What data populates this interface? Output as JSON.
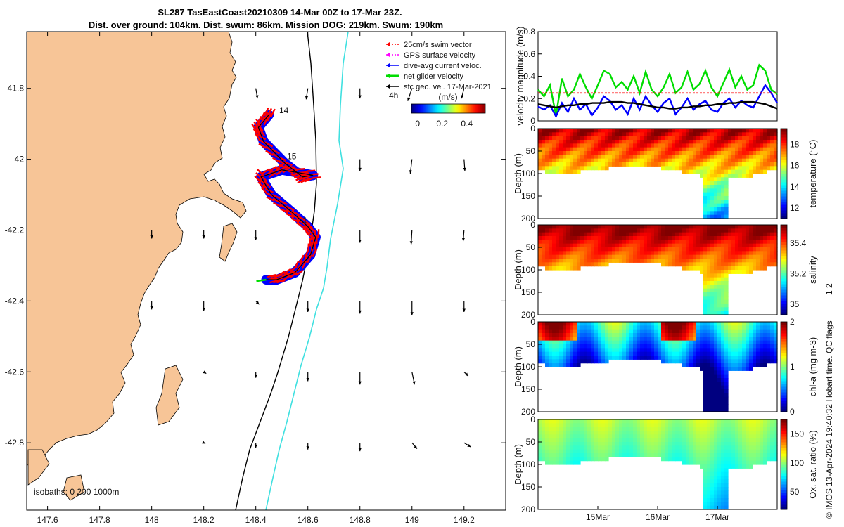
{
  "title": {
    "line1": "SL287 TasEastCoast20210309 14-Mar 00Z to 17-Mar 23Z.",
    "line2": "Dist. over ground: 104km. Dist. swum: 86km. Mission DOG: 219km. Swum: 190km"
  },
  "colors": {
    "land": "#F7C597",
    "shelf_line": "#000000",
    "slope_line": "#40E0E0",
    "swim": "#FF0000",
    "gps": "#FF00FF",
    "dive_avg": "#0000FF",
    "net": "#00DD00",
    "sfc_geo": "#000000"
  },
  "chart_data": [
    {
      "type": "map",
      "name": "track map",
      "xlim": [
        147.52,
        149.36
      ],
      "ylim": [
        -42.99,
        -41.64
      ],
      "x_ticks": [
        147.6,
        147.8,
        148,
        148.2,
        148.4,
        148.6,
        148.8,
        149,
        149.2
      ],
      "x_tick_labels": [
        "147.6",
        "147.8",
        "148",
        "148.2",
        "148.4",
        "148.6",
        "148.8",
        "149",
        "149.2"
      ],
      "y_ticks": [
        -41.8,
        -42,
        -42.2,
        -42.4,
        -42.6,
        -42.8
      ],
      "y_tick_labels": [
        "-41.8",
        "-42",
        "-42.2",
        "-42.4",
        "-42.6",
        "-42.8"
      ],
      "track_labels": [
        {
          "text": "14",
          "lon": 148.49,
          "lat": -41.87
        },
        {
          "text": "15",
          "lon": 148.52,
          "lat": -42.0
        },
        {
          "text": "1",
          "lon": 148.58,
          "lat": -42.18
        }
      ],
      "glider_track": [
        {
          "lon": 148.45,
          "lat": -41.875
        },
        {
          "lon": 148.41,
          "lat": -41.91
        },
        {
          "lon": 148.43,
          "lat": -41.95
        },
        {
          "lon": 148.51,
          "lat": -42.01
        },
        {
          "lon": 148.58,
          "lat": -42.05
        },
        {
          "lon": 148.62,
          "lat": -42.045
        },
        {
          "lon": 148.5,
          "lat": -42.03
        },
        {
          "lon": 148.42,
          "lat": -42.05
        },
        {
          "lon": 148.46,
          "lat": -42.1
        },
        {
          "lon": 148.54,
          "lat": -42.15
        },
        {
          "lon": 148.6,
          "lat": -42.19
        },
        {
          "lon": 148.63,
          "lat": -42.22
        },
        {
          "lon": 148.61,
          "lat": -42.27
        },
        {
          "lon": 148.55,
          "lat": -42.32
        },
        {
          "lon": 148.48,
          "lat": -42.34
        },
        {
          "lon": 148.44,
          "lat": -42.34
        }
      ],
      "current_vectors": [
        {
          "lon": 148.4,
          "lat": -41.8,
          "u": 0.02,
          "v": -0.12
        },
        {
          "lon": 148.6,
          "lat": -41.8,
          "u": -0.02,
          "v": -0.13
        },
        {
          "lon": 148.8,
          "lat": -41.8,
          "u": 0.0,
          "v": -0.12
        },
        {
          "lon": 149.0,
          "lat": -41.8,
          "u": -0.05,
          "v": -0.15
        },
        {
          "lon": 149.2,
          "lat": -41.8,
          "u": -0.03,
          "v": -0.12
        },
        {
          "lon": 148.8,
          "lat": -42.0,
          "u": 0.0,
          "v": -0.14
        },
        {
          "lon": 149.0,
          "lat": -42.0,
          "u": -0.02,
          "v": -0.17
        },
        {
          "lon": 149.2,
          "lat": -42.0,
          "u": 0.01,
          "v": -0.14
        },
        {
          "lon": 148.0,
          "lat": -42.2,
          "u": 0.0,
          "v": -0.1
        },
        {
          "lon": 148.2,
          "lat": -42.2,
          "u": 0.0,
          "v": -0.1
        },
        {
          "lon": 148.4,
          "lat": -42.2,
          "u": 0.0,
          "v": -0.12
        },
        {
          "lon": 148.8,
          "lat": -42.2,
          "u": 0.0,
          "v": -0.15
        },
        {
          "lon": 149.0,
          "lat": -42.2,
          "u": -0.01,
          "v": -0.17
        },
        {
          "lon": 149.2,
          "lat": -42.2,
          "u": -0.01,
          "v": -0.13
        },
        {
          "lon": 148.0,
          "lat": -42.4,
          "u": 0.0,
          "v": -0.1
        },
        {
          "lon": 148.2,
          "lat": -42.4,
          "u": 0.0,
          "v": -0.12
        },
        {
          "lon": 148.4,
          "lat": -42.4,
          "u": 0.04,
          "v": -0.04
        },
        {
          "lon": 148.6,
          "lat": -42.4,
          "u": 0.0,
          "v": -0.13
        },
        {
          "lon": 148.8,
          "lat": -42.4,
          "u": 0.0,
          "v": -0.15
        },
        {
          "lon": 149.0,
          "lat": -42.4,
          "u": 0.0,
          "v": -0.17
        },
        {
          "lon": 149.2,
          "lat": -42.4,
          "u": 0.0,
          "v": -0.13
        },
        {
          "lon": 148.2,
          "lat": -42.6,
          "u": 0.03,
          "v": -0.02
        },
        {
          "lon": 148.4,
          "lat": -42.6,
          "u": 0.0,
          "v": -0.07
        },
        {
          "lon": 148.6,
          "lat": -42.6,
          "u": 0.0,
          "v": -0.11
        },
        {
          "lon": 148.8,
          "lat": -42.6,
          "u": 0.0,
          "v": -0.15
        },
        {
          "lon": 149.0,
          "lat": -42.6,
          "u": 0.03,
          "v": -0.15
        },
        {
          "lon": 149.2,
          "lat": -42.6,
          "u": 0.05,
          "v": -0.05
        },
        {
          "lon": 148.2,
          "lat": -42.8,
          "u": 0.02,
          "v": -0.01
        },
        {
          "lon": 148.4,
          "lat": -42.8,
          "u": 0.0,
          "v": -0.06
        },
        {
          "lon": 148.6,
          "lat": -42.8,
          "u": 0.0,
          "v": -0.08
        },
        {
          "lon": 148.8,
          "lat": -42.8,
          "u": 0.0,
          "v": -0.1
        },
        {
          "lon": 149.0,
          "lat": -42.8,
          "u": 0.06,
          "v": -0.07
        },
        {
          "lon": 149.2,
          "lat": -42.8,
          "u": 0.08,
          "v": -0.05
        }
      ],
      "legend": [
        {
          "label": "25cm/s swim vector",
          "color": "#FF0000"
        },
        {
          "label": "GPS surface velocity",
          "color": "#FF00FF"
        },
        {
          "label": "dive-avg current veloc.",
          "color": "#0000FF"
        },
        {
          "label": "net glider velocity",
          "color": "#00DD00"
        },
        {
          "label": "sfc geo. vel. 17-Mar-2021",
          "color": "#000000"
        }
      ],
      "legend_placement": "top-right",
      "colorbar": {
        "label": "(m/s)",
        "time_step_label": "4h",
        "range": [
          -0.05,
          0.55
        ],
        "ticks": [
          0,
          0.2,
          0.4
        ],
        "tick_labels": [
          "0",
          "0.2",
          "0.4"
        ]
      },
      "isobaths_label": "isobaths: 0   200   1000m"
    },
    {
      "type": "line",
      "name": "velocity magnitude",
      "ylabel": "velocity magnitude (m/s)",
      "ylim": [
        0,
        0.8
      ],
      "y_ticks": [
        0,
        0.2,
        0.4,
        0.6,
        0.8
      ],
      "y_tick_labels": [
        "0",
        "0.2",
        "0.4",
        "0.6",
        "0.8"
      ],
      "x": [
        14.0,
        14.1,
        14.2,
        14.3,
        14.4,
        14.5,
        14.6,
        14.7,
        14.8,
        14.9,
        15.0,
        15.1,
        15.2,
        15.3,
        15.4,
        15.5,
        15.6,
        15.7,
        15.8,
        15.9,
        16.0,
        16.1,
        16.2,
        16.3,
        16.4,
        16.5,
        16.6,
        16.7,
        16.8,
        16.9,
        17.0,
        17.1,
        17.2,
        17.3,
        17.4,
        17.5,
        17.6,
        17.7,
        17.8,
        17.9,
        18.0
      ],
      "series": [
        {
          "name": "net glider velocity",
          "color": "#00DD00",
          "values": [
            0.28,
            0.22,
            0.32,
            0.05,
            0.38,
            0.22,
            0.28,
            0.42,
            0.3,
            0.2,
            0.32,
            0.45,
            0.42,
            0.3,
            0.35,
            0.28,
            0.4,
            0.25,
            0.44,
            0.28,
            0.22,
            0.3,
            0.42,
            0.25,
            0.3,
            0.44,
            0.28,
            0.33,
            0.45,
            0.3,
            0.22,
            0.34,
            0.46,
            0.3,
            0.4,
            0.28,
            0.32,
            0.5,
            0.45,
            0.28,
            0.24
          ]
        },
        {
          "name": "dive-avg current",
          "color": "#0000FF",
          "values": [
            0.13,
            0.1,
            0.14,
            0.04,
            0.16,
            0.08,
            0.2,
            0.1,
            0.15,
            0.05,
            0.12,
            0.22,
            0.18,
            0.1,
            0.14,
            0.06,
            0.2,
            0.1,
            0.22,
            0.14,
            0.08,
            0.16,
            0.2,
            0.06,
            0.12,
            0.2,
            0.1,
            0.15,
            0.18,
            0.1,
            0.08,
            0.16,
            0.2,
            0.12,
            0.18,
            0.14,
            0.12,
            0.22,
            0.32,
            0.25,
            0.16
          ]
        },
        {
          "name": "sfc geo. vel.",
          "color": "#000000",
          "values": [
            0.15,
            0.14,
            0.13,
            0.12,
            0.13,
            0.14,
            0.14,
            0.15,
            0.15,
            0.16,
            0.16,
            0.16,
            0.17,
            0.17,
            0.17,
            0.16,
            0.16,
            0.15,
            0.14,
            0.13,
            0.12,
            0.12,
            0.11,
            0.11,
            0.12,
            0.12,
            0.13,
            0.13,
            0.14,
            0.14,
            0.15,
            0.15,
            0.16,
            0.16,
            0.17,
            0.17,
            0.17,
            0.16,
            0.15,
            0.13,
            0.11
          ]
        },
        {
          "name": "swim speed",
          "color": "#FF0000",
          "values": [
            0.25,
            0.25,
            0.25,
            0.25,
            0.25,
            0.25,
            0.25,
            0.25,
            0.25,
            0.25,
            0.25,
            0.25,
            0.25,
            0.25,
            0.25,
            0.25,
            0.25,
            0.25,
            0.25,
            0.25,
            0.25,
            0.25,
            0.25,
            0.25,
            0.25,
            0.25,
            0.25,
            0.25,
            0.25,
            0.25,
            0.25,
            0.25,
            0.25,
            0.25,
            0.25,
            0.25,
            0.25,
            0.25,
            0.25,
            0.25,
            0.25
          ]
        }
      ]
    },
    {
      "type": "heatmap",
      "name": "temperature",
      "ylabel": "Depth (m)",
      "colorbar_label": "temperature (°C)",
      "ylim": [
        200,
        0
      ],
      "y_ticks": [
        0,
        50,
        100,
        150,
        200
      ],
      "y_tick_labels": [
        "0",
        "50",
        "100",
        "150",
        "200"
      ],
      "clim": [
        11,
        19.5
      ],
      "cticks": [
        12,
        14,
        16,
        18
      ],
      "ctick_labels": [
        "12",
        "14",
        "16",
        "18"
      ],
      "scale": "jet"
    },
    {
      "type": "heatmap",
      "name": "salinity",
      "ylabel": "Depth (m)",
      "colorbar_label": "salinity",
      "ylim": [
        200,
        0
      ],
      "y_ticks": [
        0,
        50,
        100,
        150,
        200
      ],
      "y_tick_labels": [
        "0",
        "50",
        "100",
        "150",
        "200"
      ],
      "clim": [
        34.93,
        35.52
      ],
      "cticks": [
        35,
        35.2,
        35.4
      ],
      "ctick_labels": [
        "35",
        "35.2",
        "35.4"
      ],
      "scale": "jet"
    },
    {
      "type": "heatmap",
      "name": "chlorophyll",
      "ylabel": "Depth (m)",
      "colorbar_label": "chl-a (mg m-3)",
      "ylim": [
        200,
        0
      ],
      "y_ticks": [
        0,
        50,
        100,
        150,
        200
      ],
      "y_tick_labels": [
        "0",
        "50",
        "100",
        "150",
        "200"
      ],
      "clim": [
        0,
        2
      ],
      "cticks": [
        0,
        1,
        2
      ],
      "ctick_labels": [
        "0",
        "1",
        "2"
      ],
      "scale": "jet"
    },
    {
      "type": "heatmap",
      "name": "oxygen",
      "ylabel": "Depth (m)",
      "colorbar_label": "Ox. sat. ratio (%)",
      "ylim": [
        200,
        0
      ],
      "y_ticks": [
        0,
        50,
        100,
        150,
        200
      ],
      "y_tick_labels": [
        "0",
        "50",
        "100",
        "150",
        "200"
      ],
      "clim": [
        20,
        175
      ],
      "cticks": [
        50,
        100,
        150
      ],
      "ctick_labels": [
        "50",
        "100",
        "150"
      ],
      "scale": "jet",
      "x_tick_values": [
        15,
        16,
        17
      ],
      "x_tick_labels": [
        "15Mar",
        "16Mar",
        "17Mar"
      ]
    }
  ],
  "side_labels": {
    "flags": "1  2",
    "credit": "© IMOS 13-Apr-2024 19:40:32 Hobart time. QC flags"
  }
}
